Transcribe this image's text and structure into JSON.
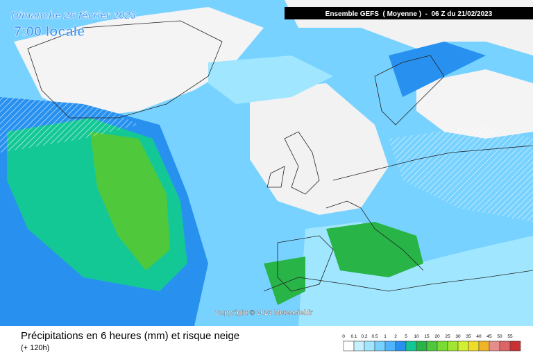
{
  "map": {
    "date": "Dimanche 26 février 2023",
    "time": "7:00 locale",
    "header": "Ensemble GEFS  ( Moyenne )  -  06 Z du 21/02/2023",
    "copyright": "Copyright © 2023 Meteociel.fr"
  },
  "footer": {
    "title": "Précipitations en 6 heures (mm) et risque neige",
    "subtitle": "(+ 120h)"
  },
  "legend": {
    "ticks": [
      0,
      0.1,
      0.2,
      0.5,
      1,
      2,
      5,
      10,
      15,
      20,
      25,
      30,
      35,
      40,
      45,
      50,
      55
    ],
    "colors": [
      "#ffffff",
      "#c8f0ff",
      "#a0e6ff",
      "#78d2ff",
      "#50b4ff",
      "#2891f0",
      "#14c896",
      "#28b446",
      "#50c83c",
      "#78dc32",
      "#a0e632",
      "#d2f032",
      "#f0dc28",
      "#f0b428",
      "#e68c8c",
      "#dc6464",
      "#c83232"
    ]
  }
}
